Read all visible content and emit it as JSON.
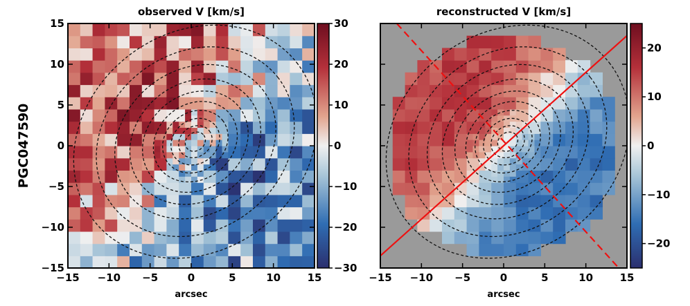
{
  "figure": {
    "ylabel": "PGC047590"
  },
  "colors": {
    "cmap_neg": "#2b2f6e",
    "cmap_mid": "#f0f0f0",
    "cmap_pos": "#6e0e1f",
    "masked": "#9a9a9a",
    "pa_line": "#ee1111"
  },
  "chart_data": [
    {
      "type": "heatmap",
      "title": "observed V [km/s]",
      "xlabel": "arcsec",
      "ylabel": "",
      "xlim": [
        -15,
        15
      ],
      "ylim": [
        -15,
        15
      ],
      "xticks": [
        -15,
        -10,
        -5,
        0,
        5,
        10,
        15
      ],
      "yticks": [
        -15,
        -10,
        -5,
        0,
        5,
        10,
        15
      ],
      "colorbar": {
        "min": -30,
        "max": 30,
        "ticks": [
          30,
          20,
          10,
          0,
          -10,
          -20,
          -30
        ]
      },
      "grid": false,
      "contours": "dashed isophotes"
    },
    {
      "type": "heatmap",
      "title": "reconstructed V [km/s]",
      "xlabel": "arcsec",
      "ylabel": "",
      "xlim": [
        -15,
        15
      ],
      "ylim": [
        -15,
        15
      ],
      "xticks": [
        -15,
        -10,
        -5,
        0,
        5,
        10,
        15
      ],
      "yticks": [],
      "colorbar": {
        "min": -25,
        "max": 25,
        "ticks": [
          20,
          10,
          0,
          -10,
          -20
        ]
      },
      "grid": false,
      "contours": "dashed isophotes",
      "position_angle_lines": [
        "solid",
        "dashed"
      ]
    }
  ]
}
